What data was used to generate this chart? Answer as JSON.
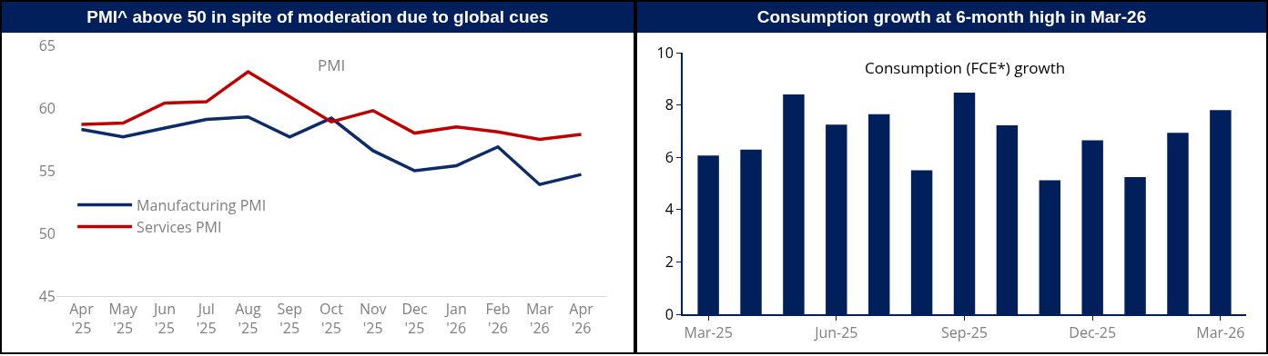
{
  "chart_data": [
    {
      "type": "line",
      "title": "PMI^ above 50 in spite of moderation due to global cues",
      "subtitle": "PMI",
      "categories": [
        "Apr '25",
        "May '25",
        "Jun '25",
        "Jul '25",
        "Aug '25",
        "Sep '25",
        "Oct '25",
        "Nov '25",
        "Dec '25",
        "Jan '26",
        "Feb '26",
        "Mar '26",
        "Apr '26"
      ],
      "series": [
        {
          "name": "Manufacturing PMI",
          "color": "#0d2a6b",
          "values": [
            58.3,
            57.7,
            58.4,
            59.1,
            59.3,
            57.7,
            59.2,
            56.6,
            55.0,
            55.4,
            56.9,
            53.9,
            54.7
          ]
        },
        {
          "name": "Services PMI",
          "color": "#c00000",
          "values": [
            58.7,
            58.8,
            60.4,
            60.5,
            62.9,
            60.9,
            58.9,
            59.8,
            58.0,
            58.5,
            58.1,
            57.5,
            57.9
          ]
        }
      ],
      "ylim": [
        45,
        65
      ],
      "yticks": [
        45,
        50,
        55,
        60,
        65
      ],
      "grid": false,
      "legend": "bottom left"
    },
    {
      "type": "bar",
      "title": "Consumption growth at 6-month high in Mar-26",
      "subtitle": "Consumption (FCE*) growth",
      "categories": [
        "Mar-25",
        null,
        null,
        "Jun-25",
        null,
        null,
        "Sep-25",
        null,
        null,
        "Dec-25",
        null,
        null,
        "Mar-26"
      ],
      "values": [
        6.07,
        6.29,
        8.4,
        7.25,
        7.65,
        5.5,
        8.47,
        7.22,
        5.12,
        6.65,
        5.24,
        6.94,
        7.8
      ],
      "color": "#001f5b",
      "ylim": [
        0,
        10
      ],
      "yticks": [
        0,
        2,
        4,
        6,
        8,
        10
      ],
      "grid": false
    }
  ]
}
